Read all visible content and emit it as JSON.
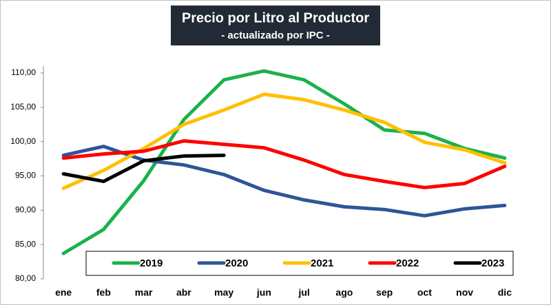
{
  "chart_data": {
    "type": "line",
    "title": "Precio por Litro al Productor",
    "subtitle": "- actualizado por IPC -",
    "categories": [
      "ene",
      "feb",
      "mar",
      "abr",
      "may",
      "jun",
      "jul",
      "ago",
      "sep",
      "oct",
      "nov",
      "dic"
    ],
    "series": [
      {
        "name": "2019",
        "color": "#1bb14c",
        "values": [
          83.7,
          87.2,
          94.3,
          103.2,
          109.0,
          110.3,
          109.0,
          105.5,
          101.7,
          101.2,
          99.0,
          97.6
        ]
      },
      {
        "name": "2020",
        "color": "#2f5597",
        "values": [
          98.0,
          99.3,
          97.3,
          96.6,
          95.2,
          92.9,
          91.5,
          90.5,
          90.1,
          89.2,
          90.2,
          90.7
        ]
      },
      {
        "name": "2021",
        "color": "#ffc000",
        "values": [
          93.2,
          95.8,
          99.0,
          102.5,
          104.6,
          106.9,
          106.1,
          104.6,
          102.8,
          99.9,
          98.8,
          96.9
        ]
      },
      {
        "name": "2022",
        "color": "#ff0000",
        "values": [
          97.6,
          98.2,
          98.6,
          100.1,
          99.6,
          99.1,
          97.3,
          95.2,
          94.2,
          93.3,
          93.9,
          96.4
        ]
      },
      {
        "name": "2023",
        "color": "#000000",
        "values": [
          95.3,
          94.2,
          97.2,
          97.9,
          98.0,
          null,
          null,
          null,
          null,
          null,
          null,
          null
        ]
      }
    ],
    "ylim": [
      80,
      110
    ],
    "yticks": [
      {
        "value": 80,
        "label": "80,00"
      },
      {
        "value": 85,
        "label": "85,00"
      },
      {
        "value": 90,
        "label": "90,00"
      },
      {
        "value": 95,
        "label": "95,00"
      },
      {
        "value": 100,
        "label": "100,00"
      },
      {
        "value": 105,
        "label": "105,00"
      },
      {
        "value": 110,
        "label": "110,00"
      }
    ],
    "grid": false,
    "legend": "bottom"
  }
}
